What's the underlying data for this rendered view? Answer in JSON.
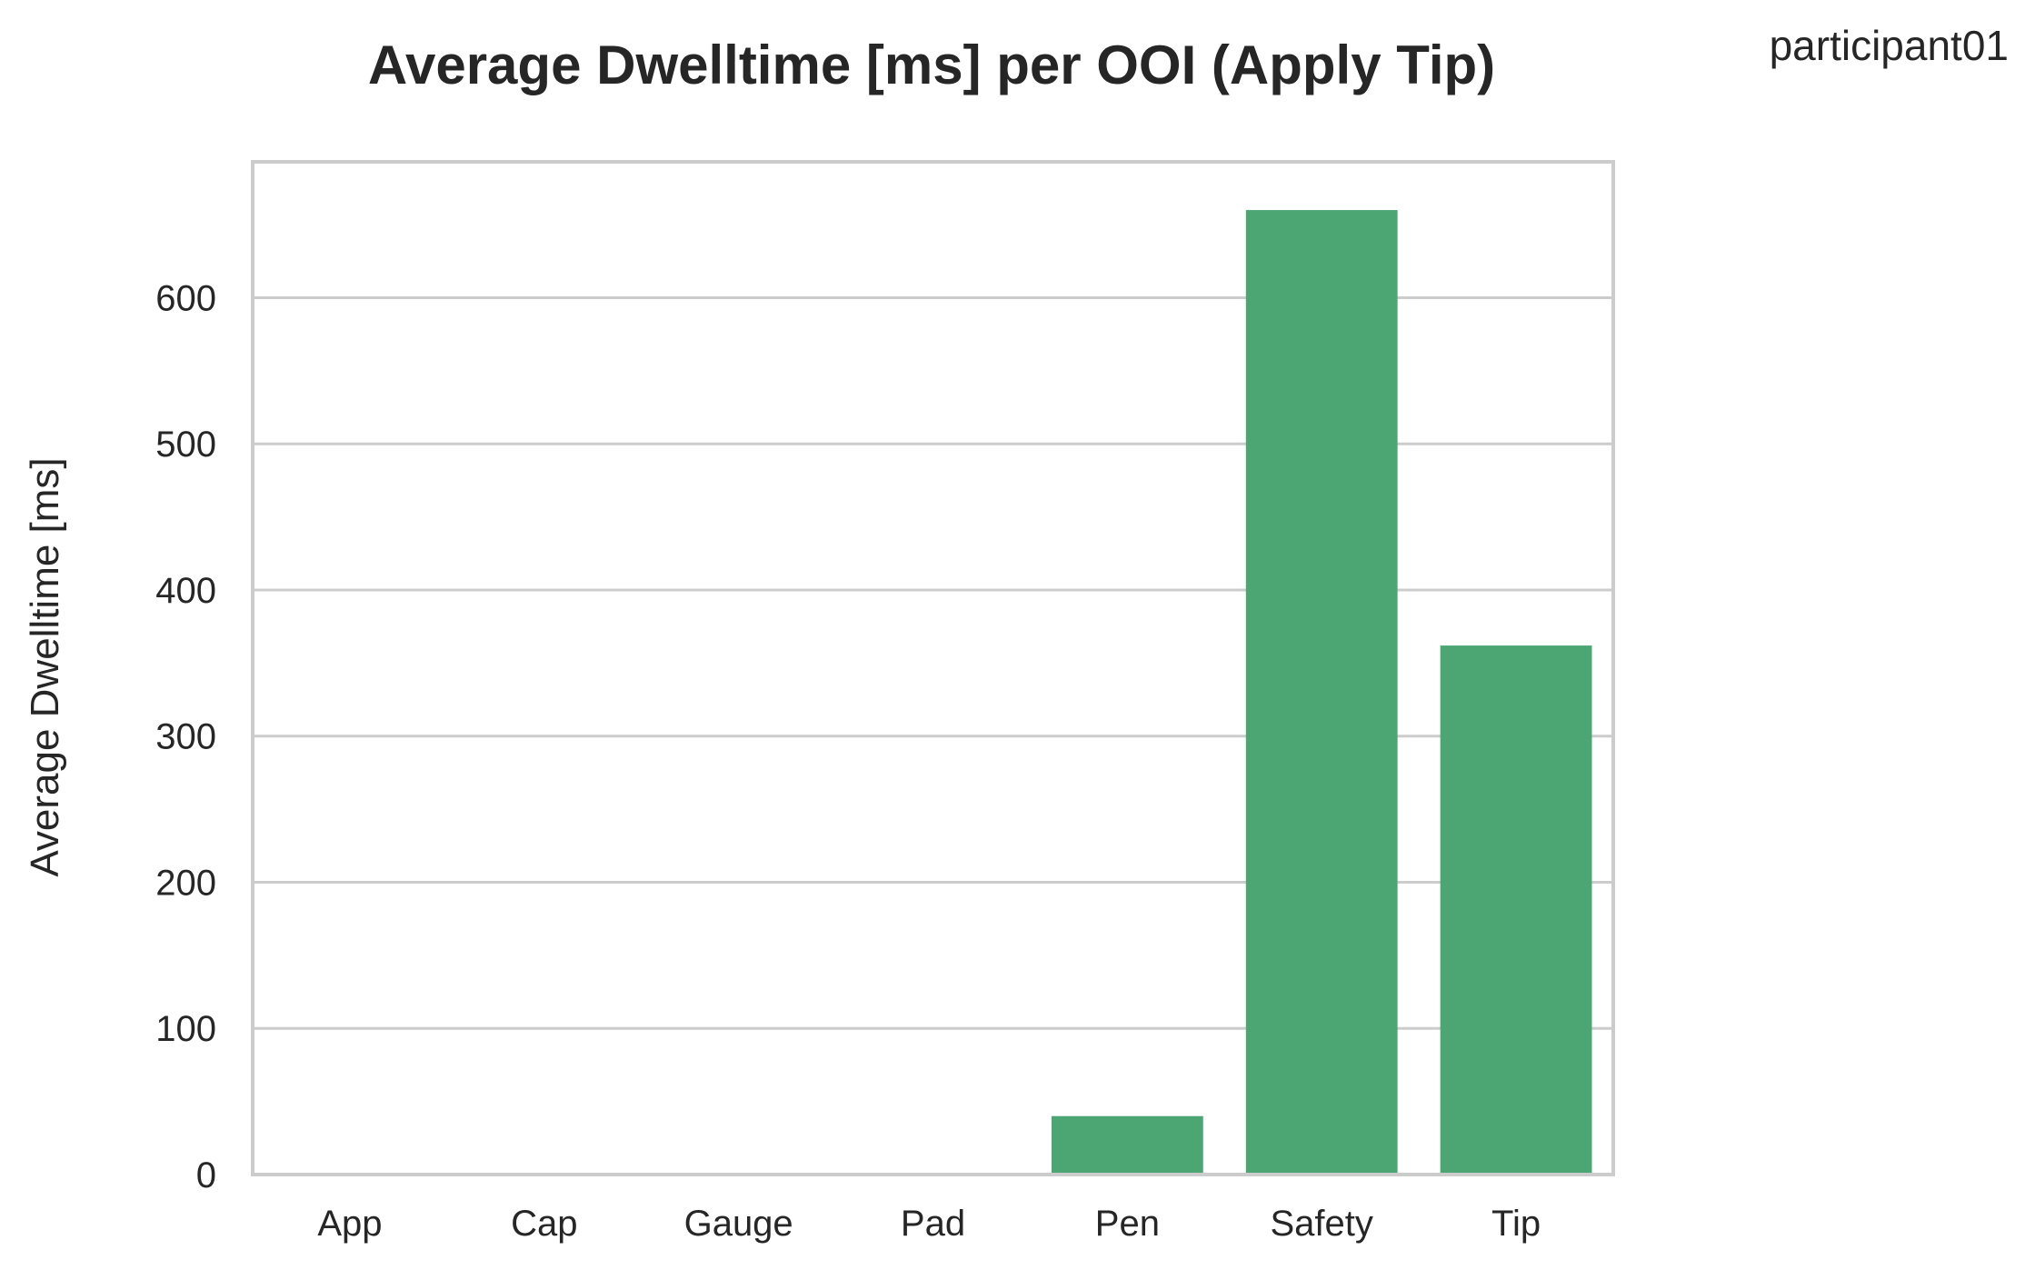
{
  "figure": {
    "corner_label": "participant01"
  },
  "chart_data": {
    "type": "bar",
    "title": "Average Dwelltime [ms] per OOI (Apply Tip)",
    "xlabel": "",
    "ylabel": "Average Dwelltime [ms]",
    "categories": [
      "App",
      "Cap",
      "Gauge",
      "Pad",
      "Pen",
      "Safety",
      "Tip"
    ],
    "values": [
      0,
      0,
      0,
      0,
      40,
      660,
      362
    ],
    "ylim": [
      0,
      693
    ],
    "yticks": [
      0,
      100,
      200,
      300,
      400,
      500,
      600
    ],
    "grid": "horizontal",
    "bar_color": "#4ca674",
    "grid_color": "#cccccc",
    "frame_color": "#cccccc"
  }
}
